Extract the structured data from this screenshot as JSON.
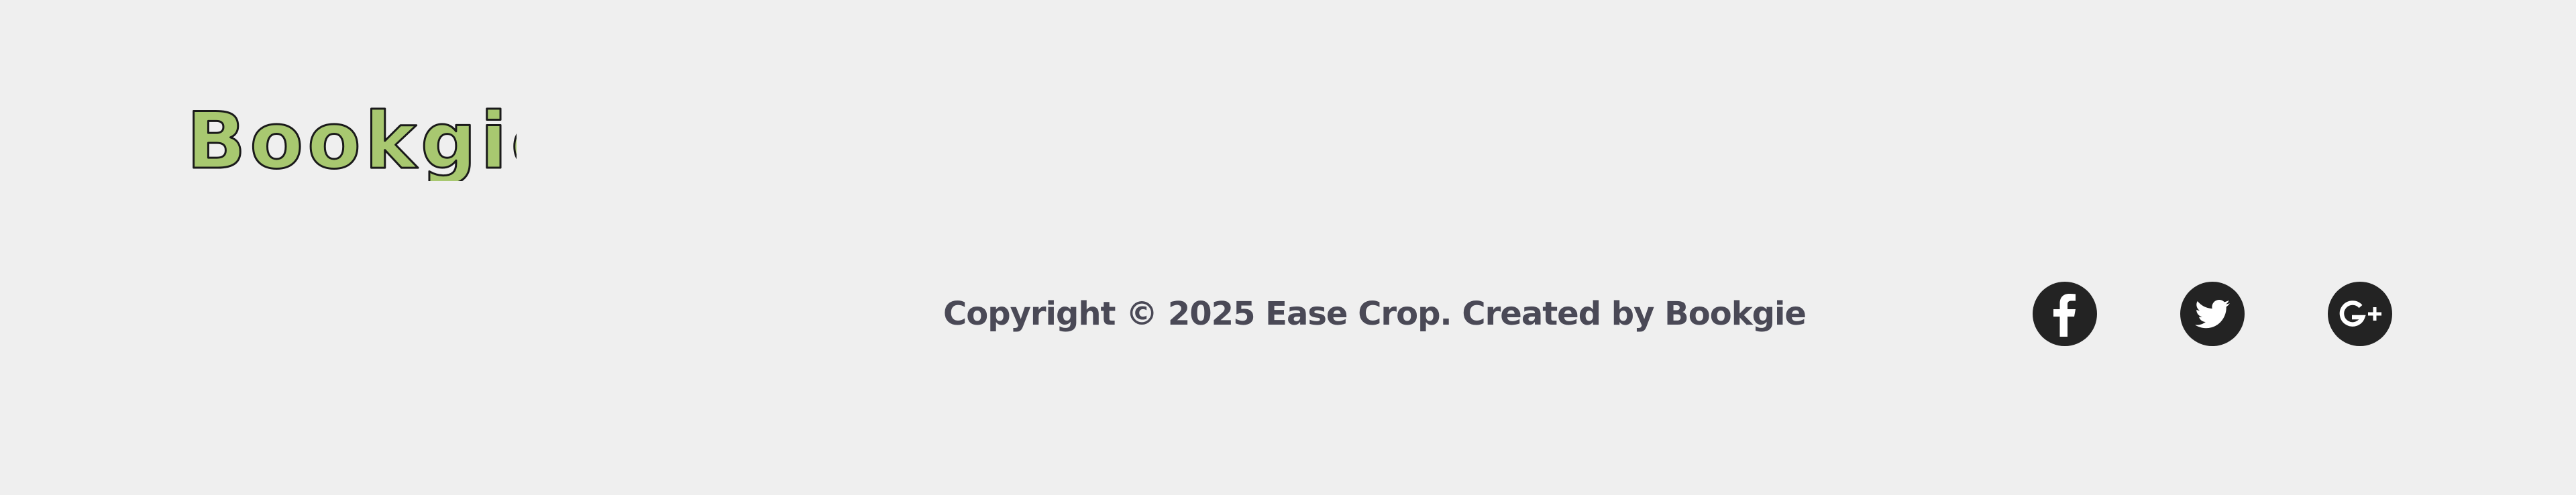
{
  "brand": {
    "logo_text": "Bookgie",
    "logo_fill": "#a8c870",
    "logo_stroke": "#1a1a1a"
  },
  "footer": {
    "copyright": "Copyright © 2025 Ease Crop. Created by Bookgie",
    "text_color": "#4a4956"
  },
  "socials": [
    {
      "name": "facebook",
      "icon": "facebook-icon"
    },
    {
      "name": "twitter",
      "icon": "twitter-icon"
    },
    {
      "name": "google-plus",
      "icon": "google-plus-icon"
    }
  ],
  "colors": {
    "background": "#efefef",
    "icon_circle": "#232323"
  }
}
